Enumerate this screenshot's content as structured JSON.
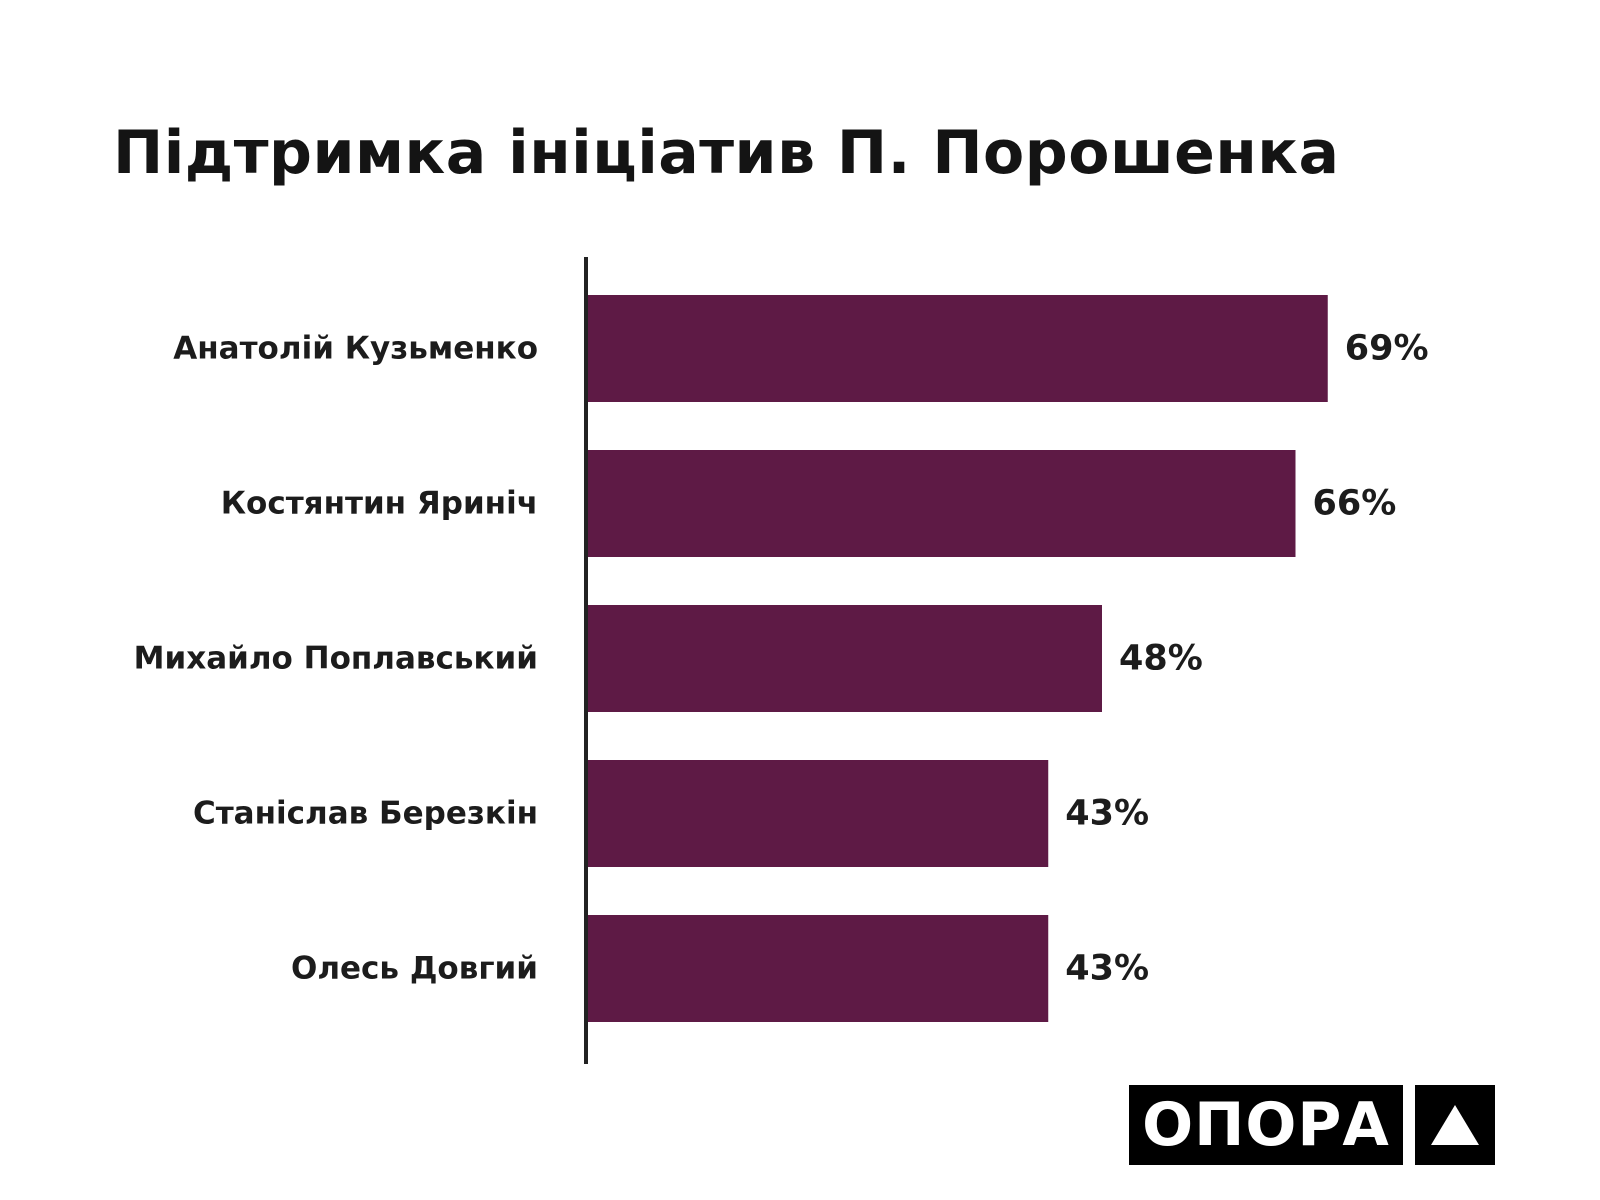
{
  "chart_data": {
    "type": "bar",
    "orientation": "horizontal",
    "title": "Підтримка ініціатив П. Порошенка",
    "categories": [
      "Анатолій Кузьменко",
      "Костянтин Яриніч",
      "Михайло Поплавський",
      "Станіслав Березкін",
      "Олесь Довгий"
    ],
    "values": [
      69,
      66,
      48,
      43,
      43
    ],
    "value_labels": [
      "69%",
      "66%",
      "48%",
      "43%",
      "43%"
    ],
    "unit": "%",
    "xlim": [
      0,
      100
    ],
    "grid": false,
    "legend": "none",
    "bar_color": "#5e1a45"
  },
  "logo": {
    "wordmark": "ОПОРА",
    "mark_icon": "triangle-up-icon"
  },
  "colors": {
    "bar": "#5e1a45",
    "text": "#1c1c1c",
    "axis": "#222222",
    "logo_bg": "#000000",
    "logo_fg": "#ffffff"
  }
}
